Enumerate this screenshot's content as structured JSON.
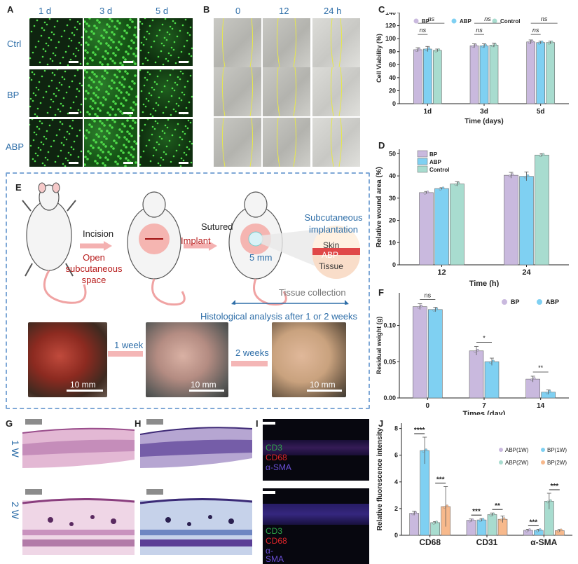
{
  "panels": {
    "A": {
      "label": "A",
      "cols": [
        "1 d",
        "3 d",
        "5 d"
      ],
      "rows": [
        "Ctrl",
        "BP",
        "ABP"
      ]
    },
    "B": {
      "label": "B",
      "cols": [
        "0",
        "12",
        "24 h"
      ]
    },
    "C": {
      "label": "C"
    },
    "D": {
      "label": "D"
    },
    "E": {
      "label": "E",
      "incision": "Incision",
      "open_space": "Open\nsubcutaneous\nspace",
      "implant": "Implant",
      "sutured": "Sutured",
      "five_mm": "5 mm",
      "subcut": "Subcutaneous\nimplantation",
      "skin": "Skin",
      "abp": "ABP",
      "tissue": "Tissue",
      "tissue_collection": "Tissue collection",
      "histo": "Histological analysis after 1 or 2 weeks",
      "week1": "1 week",
      "week2": "2 weeks",
      "scale": "10 mm"
    },
    "F": {
      "label": "F"
    },
    "G": {
      "label": "G",
      "row1": "1 W",
      "row2": "2 W"
    },
    "H": {
      "label": "H"
    },
    "I": {
      "label": "I",
      "top": [
        "CD3",
        "CD68",
        "α-SMA"
      ],
      "bottom": [
        "CD3",
        "CD68",
        "α-",
        "SMA"
      ]
    },
    "J": {
      "label": "J"
    }
  },
  "chart_data": [
    {
      "panel": "C",
      "type": "bar",
      "ylabel": "Cell Viability (%)",
      "xlabel": "Time (days)",
      "categories": [
        "1d",
        "3d",
        "5d"
      ],
      "ylim": [
        0,
        140
      ],
      "yticks": [
        0,
        20,
        40,
        60,
        80,
        100,
        120,
        140
      ],
      "legend": [
        "BP",
        "ABP",
        "Control"
      ],
      "series": [
        {
          "name": "BP",
          "values": [
            83,
            89,
            95
          ],
          "errors": [
            3,
            3,
            3
          ],
          "color": "#c9b9de"
        },
        {
          "name": "ABP",
          "values": [
            84,
            89,
            94
          ],
          "errors": [
            4,
            3,
            2
          ],
          "color": "#7fd0f2"
        },
        {
          "name": "Control",
          "values": [
            82,
            90,
            94
          ],
          "errors": [
            2,
            3,
            2
          ],
          "color": "#a8dccf"
        }
      ],
      "annotations": [
        "ns",
        "ns",
        "ns",
        "ns",
        "ns",
        "ns"
      ]
    },
    {
      "panel": "D",
      "type": "bar",
      "ylabel": "Relative wound area (%)",
      "xlabel": "Time (h)",
      "categories": [
        "12",
        "24"
      ],
      "ylim": [
        0,
        52
      ],
      "yticks": [
        0,
        10,
        20,
        30,
        40,
        50
      ],
      "legend": [
        "BP",
        "ABP",
        "Control"
      ],
      "series": [
        {
          "name": "BP",
          "values": [
            32.5,
            40.3
          ],
          "errors": [
            0.5,
            1.3
          ],
          "color": "#c9b9de"
        },
        {
          "name": "ABP",
          "values": [
            34.3,
            39.8
          ],
          "errors": [
            0.4,
            2.0
          ],
          "color": "#7fd0f2"
        },
        {
          "name": "Control",
          "values": [
            36.4,
            49.4
          ],
          "errors": [
            1.0,
            0.6
          ],
          "color": "#a8dccf"
        }
      ]
    },
    {
      "panel": "F",
      "type": "bar",
      "ylabel": "Residual weight (g)",
      "xlabel": "Times (day)",
      "categories": [
        "0",
        "7",
        "14"
      ],
      "ylim": [
        0,
        0.145
      ],
      "yticks": [
        "0.00",
        "0.05",
        "0.10"
      ],
      "legend": [
        "BP",
        "ABP"
      ],
      "series": [
        {
          "name": "BP",
          "values": [
            0.126,
            0.065,
            0.026
          ],
          "errors": [
            0.004,
            0.006,
            0.004
          ],
          "color": "#c9b9de"
        },
        {
          "name": "ABP",
          "values": [
            0.122,
            0.05,
            0.008
          ],
          "errors": [
            0.003,
            0.005,
            0.003
          ],
          "color": "#7fd0f2"
        }
      ],
      "annotations": [
        "ns",
        "*",
        "**"
      ]
    },
    {
      "panel": "J",
      "type": "bar",
      "ylabel": "Relative fluorescence intensity",
      "categories": [
        "CD68",
        "CD31",
        "α-SMA"
      ],
      "ylim": [
        0,
        8.4
      ],
      "yticks": [
        0,
        2,
        4,
        6,
        8
      ],
      "legend": [
        "ABP(1W)",
        "BP(1W)",
        "ABP(2W)",
        "BP(2W)"
      ],
      "series": [
        {
          "name": "ABP(1W)",
          "values": [
            1.65,
            1.12,
            0.37
          ],
          "errors": [
            0.15,
            0.1,
            0.08
          ],
          "color": "#c9b9de"
        },
        {
          "name": "BP(1W)",
          "values": [
            6.35,
            1.15,
            0.37
          ],
          "errors": [
            1.0,
            0.1,
            0.08
          ],
          "color": "#7fd0f2"
        },
        {
          "name": "ABP(2W)",
          "values": [
            0.95,
            1.55,
            2.55
          ],
          "errors": [
            0.08,
            0.12,
            0.6
          ],
          "color": "#a8dccf"
        },
        {
          "name": "BP(2W)",
          "values": [
            2.15,
            1.2,
            0.35
          ],
          "errors": [
            1.5,
            0.25,
            0.08
          ],
          "color": "#f7b98c"
        }
      ],
      "annotations": [
        "****",
        "***",
        "***",
        "**",
        "***",
        "***"
      ]
    }
  ]
}
